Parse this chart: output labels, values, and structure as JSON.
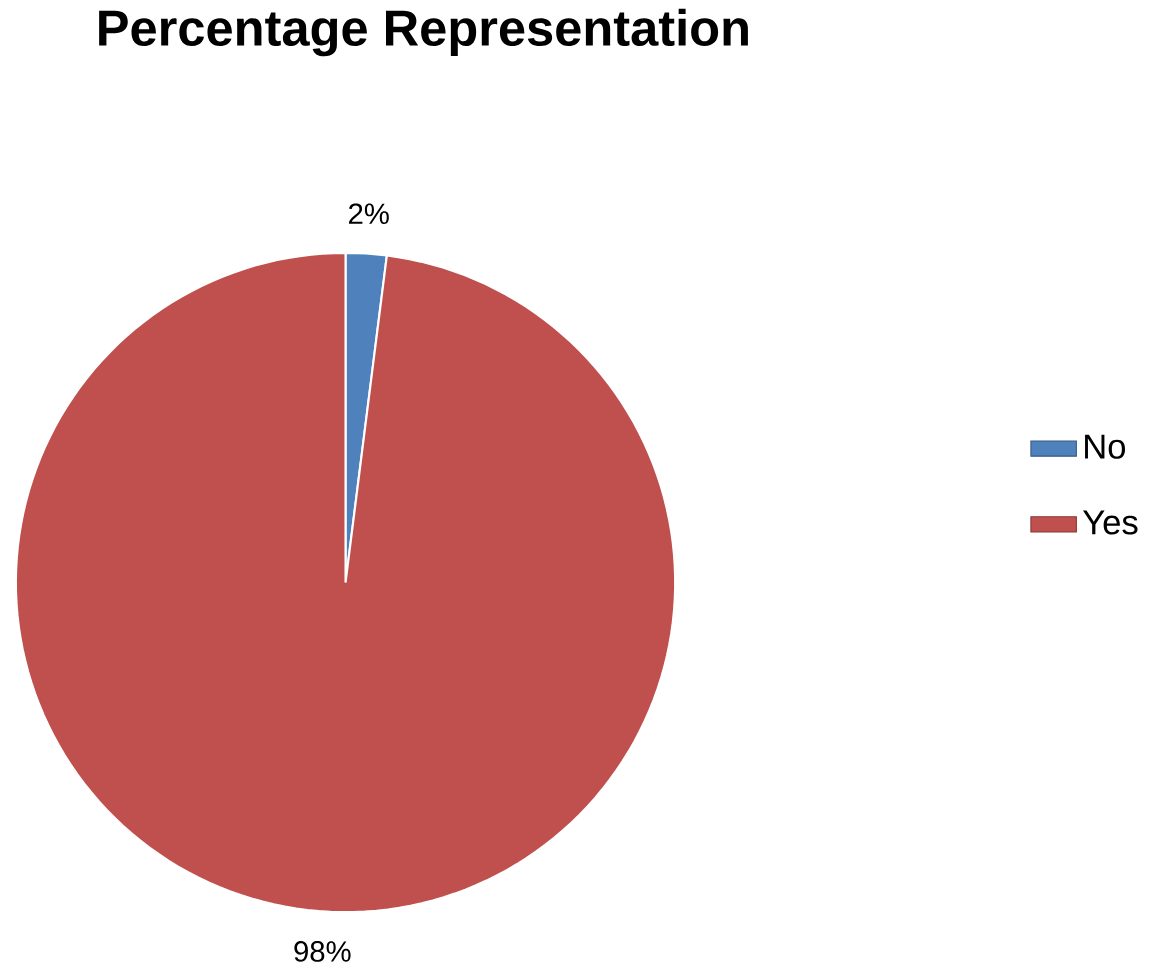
{
  "chart_data": {
    "type": "pie",
    "title": "Percentage Representation",
    "categories": [
      "No",
      "Yes"
    ],
    "values": [
      2,
      98
    ],
    "colors": [
      "#4f81bd",
      "#c0504d"
    ],
    "value_labels": [
      "2%",
      "98%"
    ],
    "legend": "right"
  }
}
